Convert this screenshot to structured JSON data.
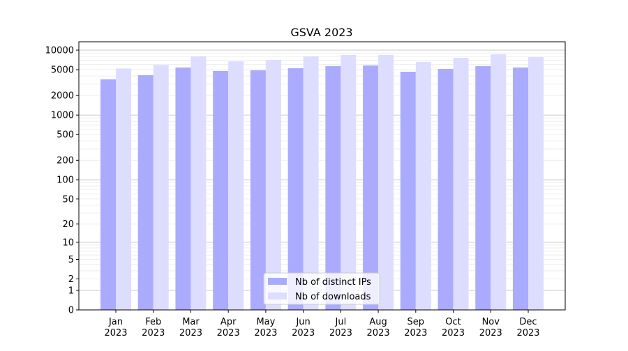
{
  "chart_data": {
    "type": "bar",
    "title": "GSVA 2023",
    "xlabel": "",
    "ylabel": "",
    "yscale": "log(1+y)",
    "ylim": [
      0,
      12000
    ],
    "grid": true,
    "legend_position": "bottom-center",
    "categories": [
      "Jan\n2023",
      "Feb\n2023",
      "Mar\n2023",
      "Apr\n2023",
      "May\n2023",
      "Jun\n2023",
      "Jul\n2023",
      "Aug\n2023",
      "Sep\n2023",
      "Oct\n2023",
      "Nov\n2023",
      "Dec\n2023"
    ],
    "y_ticks": [
      0,
      1,
      2,
      5,
      10,
      20,
      50,
      100,
      200,
      500,
      1000,
      2000,
      5000,
      10000
    ],
    "series": [
      {
        "name": "Nb of distinct IPs",
        "color": "#aaaaff",
        "values": [
          3550,
          4110,
          5400,
          4770,
          4890,
          5260,
          5670,
          5810,
          4650,
          5130,
          5670,
          5400
        ]
      },
      {
        "name": "Nb of downloads",
        "color": "#ddddff",
        "values": [
          5220,
          5910,
          8000,
          6730,
          7080,
          8000,
          8410,
          8410,
          6580,
          7620,
          8630,
          7810
        ]
      }
    ]
  }
}
